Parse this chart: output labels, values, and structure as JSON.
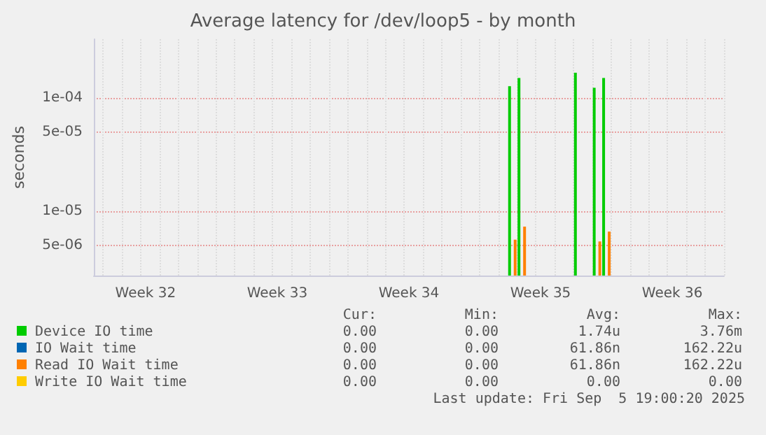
{
  "chart_data": {
    "type": "bar",
    "title": "Average latency for /dev/loop5 - by month",
    "ylabel": "seconds",
    "log": true,
    "grid": true,
    "legend": "bottom",
    "categories": [
      null,
      null,
      null,
      null,
      null,
      "Week 32",
      null,
      null,
      null,
      null,
      null,
      null,
      null,
      null,
      null,
      null,
      null,
      null,
      null,
      "Week 33",
      null,
      null,
      null,
      null,
      null,
      null,
      null,
      null,
      null,
      null,
      null,
      null,
      null,
      "Week 34",
      null,
      null,
      null,
      null,
      null,
      null,
      null,
      null,
      null,
      null,
      null,
      null,
      null,
      "Week 35",
      null,
      null,
      null,
      null,
      null,
      null,
      null,
      null,
      null,
      null,
      null,
      null,
      null,
      "Week 36",
      null,
      null,
      null,
      null,
      null
    ],
    "ylim": [
      2.7e-06,
      0.00033
    ],
    "yticks": [
      {
        "value": 5e-06,
        "label": "5e-06"
      },
      {
        "value": 1e-05,
        "label": "1e-05"
      },
      {
        "value": 5e-05,
        "label": "5e-05"
      },
      {
        "value": 0.0001,
        "label": "1e-04"
      }
    ],
    "series": [
      {
        "name": "Device IO time",
        "color": "#00cc00",
        "values": [
          null,
          null,
          null,
          null,
          null,
          null,
          null,
          null,
          null,
          null,
          null,
          null,
          null,
          null,
          null,
          null,
          null,
          null,
          null,
          null,
          null,
          null,
          null,
          null,
          null,
          null,
          null,
          null,
          null,
          null,
          null,
          null,
          null,
          null,
          null,
          null,
          null,
          null,
          null,
          null,
          null,
          null,
          null,
          null,
          0.000127,
          0.00015,
          null,
          null,
          null,
          null,
          null,
          0.000167,
          null,
          0.000123,
          0.00015,
          null,
          null,
          null,
          null,
          null,
          null,
          null,
          null,
          null,
          null,
          null,
          null
        ]
      },
      {
        "name": "IO Wait time",
        "color": "#0066b3",
        "values": [
          null,
          null,
          null,
          null,
          null,
          null,
          null,
          null,
          null,
          null,
          null,
          null,
          null,
          null,
          null,
          null,
          null,
          null,
          null,
          null,
          null,
          null,
          null,
          null,
          null,
          null,
          null,
          null,
          null,
          null,
          null,
          null,
          null,
          null,
          null,
          null,
          null,
          null,
          null,
          null,
          null,
          null,
          null,
          null,
          null,
          null,
          null,
          null,
          null,
          null,
          null,
          null,
          null,
          null,
          null,
          null,
          null,
          null,
          null,
          null,
          null,
          null,
          null,
          null,
          null,
          null,
          null
        ]
      },
      {
        "name": "Read IO Wait time",
        "color": "#ff8000",
        "values": [
          null,
          null,
          null,
          null,
          null,
          null,
          null,
          null,
          null,
          null,
          null,
          null,
          null,
          null,
          null,
          null,
          null,
          null,
          null,
          null,
          null,
          null,
          null,
          null,
          null,
          null,
          null,
          null,
          null,
          null,
          null,
          null,
          null,
          null,
          null,
          null,
          null,
          null,
          null,
          null,
          null,
          null,
          null,
          null,
          5.6e-06,
          7.3e-06,
          null,
          null,
          null,
          null,
          null,
          null,
          null,
          5.4e-06,
          6.6e-06,
          null,
          null,
          null,
          null,
          null,
          null,
          null,
          null,
          null,
          null,
          null,
          null
        ]
      },
      {
        "name": "Write IO Wait time",
        "color": "#ffcc00",
        "values": [
          null,
          null,
          null,
          null,
          null,
          null,
          null,
          null,
          null,
          null,
          null,
          null,
          null,
          null,
          null,
          null,
          null,
          null,
          null,
          null,
          null,
          null,
          null,
          null,
          null,
          null,
          null,
          null,
          null,
          null,
          null,
          null,
          null,
          null,
          null,
          null,
          null,
          null,
          null,
          null,
          null,
          null,
          null,
          null,
          null,
          null,
          null,
          null,
          null,
          null,
          null,
          null,
          null,
          null,
          null,
          null,
          null,
          null,
          null,
          null,
          null,
          null,
          null,
          null,
          null,
          null,
          null
        ]
      }
    ],
    "annotations": [
      "Cur:",
      "Min:",
      "Avg:",
      "Max:",
      "0.00",
      "0.00",
      "1.74u",
      "3.76m",
      "0.00",
      "0.00",
      "61.86n",
      "162.22u",
      "0.00",
      "0.00",
      "61.86n",
      "162.22u",
      "0.00",
      "0.00",
      "0.00",
      "0.00",
      "Last update: Fri Sep  5 19:00:20 2025"
    ]
  }
}
